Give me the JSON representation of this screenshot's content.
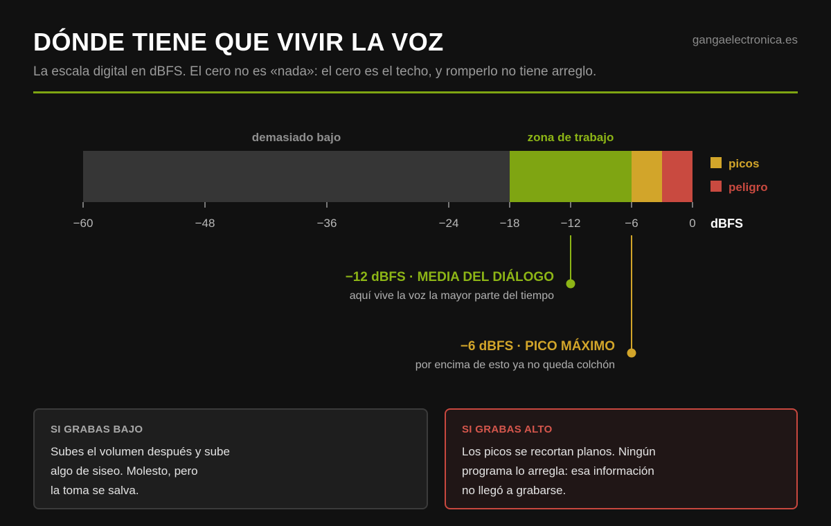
{
  "header": {
    "title": "DÓNDE TIENE QUE VIVIR LA VOZ",
    "site": "gangaelectronica.es",
    "subtitle": "La escala digital en dBFS. El cero no es «nada»: el cero es el techo, y romperlo no tiene arreglo."
  },
  "colors": {
    "accent": "#7fa512",
    "low": "#363636",
    "work": "#7fa512",
    "peaks": "#d2a52a",
    "danger": "#c94a40",
    "background": "#111111"
  },
  "chart_data": {
    "type": "bar",
    "axis": {
      "min": -60,
      "max": 0,
      "ticks": [
        -60,
        -48,
        -36,
        -24,
        -18,
        -12,
        -6,
        0
      ],
      "tick_labels": [
        "−60",
        "−48",
        "−36",
        "−24",
        "−18",
        "−12",
        "−6",
        "0"
      ],
      "unit_label": "dBFS"
    },
    "segments": [
      {
        "from": -60,
        "to": -18,
        "label": "demasiado bajo",
        "color": "#363636"
      },
      {
        "from": -18,
        "to": -6,
        "label": "zona de trabajo",
        "color": "#7fa512"
      },
      {
        "from": -6,
        "to": -3,
        "label": "",
        "color": "#d2a52a"
      },
      {
        "from": -3,
        "to": 0,
        "label": "",
        "color": "#c94a40"
      }
    ],
    "legend": [
      {
        "name": "picos",
        "color": "#d2a52a"
      },
      {
        "name": "peligro",
        "color": "#c94a40"
      }
    ],
    "annotations": [
      {
        "value": -12,
        "title": "−12 dBFS · MEDIA DEL DIÁLOGO",
        "text": "aquí vive la voz la mayor parte del tiempo",
        "color": "#8db516"
      },
      {
        "value": -6,
        "title": "−6 dBFS · PICO MÁXIMO",
        "text": "por encima de esto ya no queda colchón",
        "color": "#d2a52a"
      }
    ]
  },
  "cards": {
    "low": {
      "heading": "SI GRABAS BAJO",
      "text": "Subes el volumen después y sube\nalgo de siseo. Molesto, pero\nla toma se salva."
    },
    "high": {
      "heading": "SI GRABAS ALTO",
      "text": "Los picos se recortan planos. Ningún\nprograma lo arregla: esa información\nno llegó a grabarse."
    }
  }
}
